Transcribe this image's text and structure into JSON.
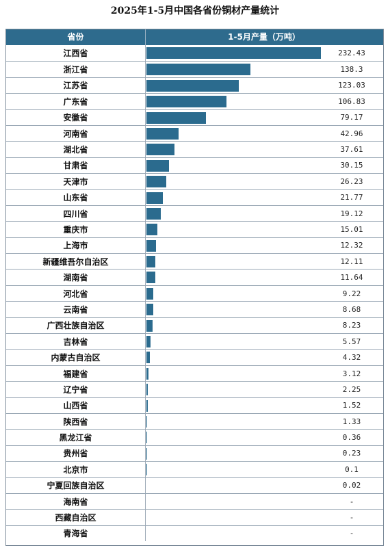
{
  "chart_data": {
    "type": "bar",
    "title": "2025年1-5月中国各省份铜材产量统计",
    "columns": [
      "省份",
      "1-5月产量（万吨）"
    ],
    "categories": [
      "江西省",
      "浙江省",
      "江苏省",
      "广东省",
      "安徽省",
      "河南省",
      "湖北省",
      "甘肃省",
      "天津市",
      "山东省",
      "四川省",
      "重庆市",
      "上海市",
      "新疆维吾尔自治区",
      "湖南省",
      "河北省",
      "云南省",
      "广西壮族自治区",
      "吉林省",
      "内蒙古自治区",
      "福建省",
      "辽宁省",
      "山西省",
      "陕西省",
      "黑龙江省",
      "贵州省",
      "北京市",
      "宁夏回族自治区",
      "海南省",
      "西藏自治区",
      "青海省"
    ],
    "values": [
      232.43,
      138.3,
      123.03,
      106.83,
      79.17,
      42.96,
      37.61,
      30.15,
      26.23,
      21.77,
      19.12,
      15.01,
      12.32,
      12.11,
      11.64,
      9.22,
      8.68,
      8.23,
      5.57,
      4.32,
      3.12,
      2.25,
      1.52,
      1.33,
      0.36,
      0.23,
      0.1,
      0.02,
      null,
      null,
      null
    ],
    "value_labels": [
      "232.43",
      "138.3",
      "123.03",
      "106.83",
      "79.17",
      "42.96",
      "37.61",
      "30.15",
      "26.23",
      "21.77",
      "19.12",
      "15.01",
      "12.32",
      "12.11",
      "11.64",
      "9.22",
      "8.68",
      "8.23",
      "5.57",
      "4.32",
      "3.12",
      "2.25",
      "1.52",
      "1.33",
      "0.36",
      "0.23",
      "0.1",
      "0.02",
      "-",
      "-",
      "-"
    ],
    "colors": {
      "header_bg": "#2e6b8d",
      "bar": "#2b6b8e"
    }
  }
}
